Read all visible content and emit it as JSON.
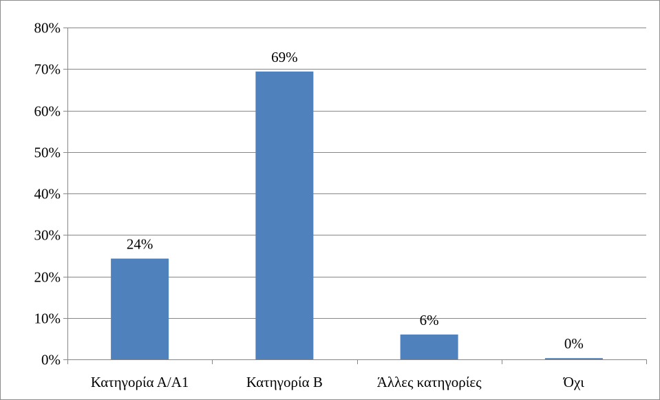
{
  "chart_data": {
    "type": "bar",
    "categories": [
      "Κατηγορία Α/Α1",
      "Κατηγορία Β",
      "Άλλες κατηγορίες",
      "Όχι"
    ],
    "values": [
      24.3,
      69.4,
      6.0,
      0.3
    ],
    "data_labels": [
      "24%",
      "69%",
      "6%",
      "0%"
    ],
    "y_tick_labels": [
      "0%",
      "10%",
      "20%",
      "30%",
      "40%",
      "50%",
      "60%",
      "70%",
      "80%"
    ],
    "ylim": [
      0,
      80
    ],
    "y_unit": "%",
    "grid": true,
    "legend": "none",
    "colors": {
      "bar": "#4f81bd",
      "grid": "#868686",
      "axis": "#868686",
      "text": "#000000"
    }
  }
}
